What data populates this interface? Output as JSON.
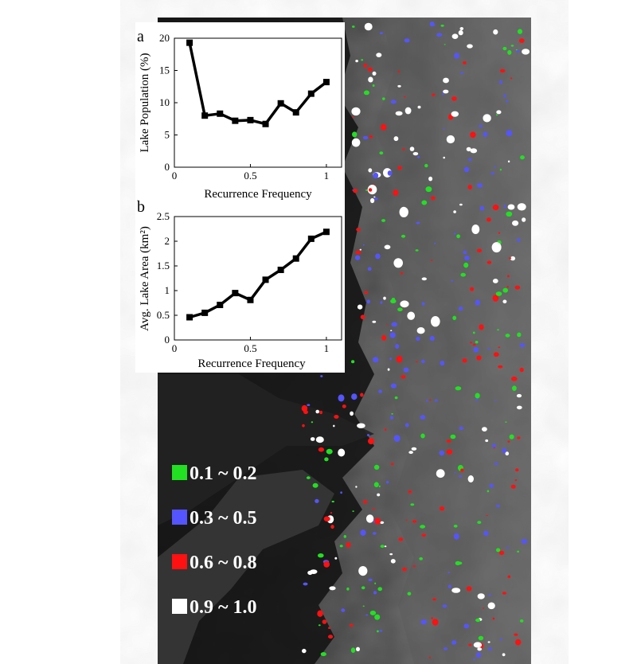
{
  "chart_data": [
    {
      "type": "line",
      "panel_label": "a",
      "xlabel": "Recurrence Frequency",
      "ylabel": "Lake Population (%)",
      "xlim": [
        0,
        1.1
      ],
      "ylim": [
        0,
        20
      ],
      "xticks": [
        0,
        0.5,
        1
      ],
      "yticks": [
        0,
        5,
        10,
        15,
        20
      ],
      "x": [
        0.1,
        0.2,
        0.3,
        0.4,
        0.5,
        0.6,
        0.7,
        0.8,
        0.9,
        1.0
      ],
      "y": [
        19.3,
        8.0,
        8.3,
        7.2,
        7.3,
        6.7,
        9.9,
        8.5,
        11.4,
        13.2
      ],
      "grid": false
    },
    {
      "type": "line",
      "panel_label": "b",
      "xlabel": "Recurrence Frequency",
      "ylabel": "Avg. Lake Area (km²)",
      "xlim": [
        0,
        1.1
      ],
      "ylim": [
        0,
        2.5
      ],
      "xticks": [
        0,
        0.5,
        1
      ],
      "yticks": [
        0,
        0.5,
        1,
        1.5,
        2,
        2.5
      ],
      "x": [
        0.1,
        0.2,
        0.3,
        0.4,
        0.5,
        0.6,
        0.7,
        0.8,
        0.9,
        1.0
      ],
      "y": [
        0.46,
        0.55,
        0.71,
        0.95,
        0.81,
        1.22,
        1.42,
        1.65,
        2.05,
        2.19
      ],
      "grid": false
    }
  ],
  "legend": [
    {
      "label": "0.1 ~ 0.2",
      "color": "#22e022"
    },
    {
      "label": "0.3 ~ 0.5",
      "color": "#5555ff"
    },
    {
      "label": "0.6 ~ 0.8",
      "color": "#ff1111"
    },
    {
      "label": "0.9 ~ 1.0",
      "color": "#ffffff"
    }
  ]
}
